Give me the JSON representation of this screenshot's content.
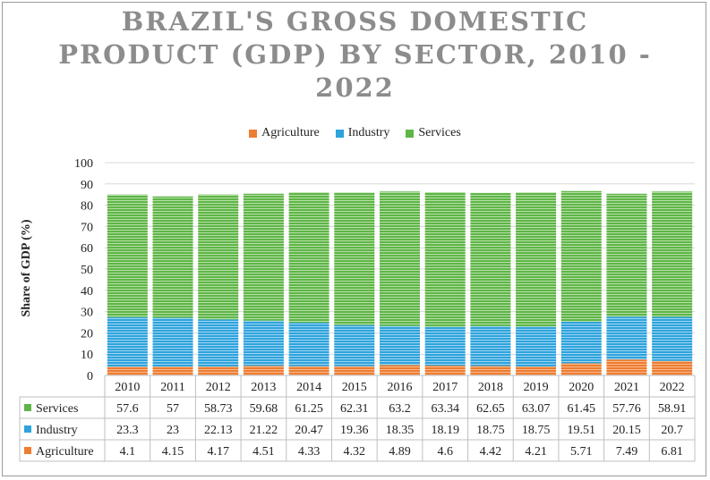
{
  "chart_data": {
    "type": "bar",
    "stacked": true,
    "title": "BRAZIL'S GROSS DOMESTIC PRODUCT (GDP) BY SECTOR, 2010 - 2022",
    "title_lines": [
      "BRAZIL'S GROSS DOMESTIC",
      "PRODUCT (GDP) BY SECTOR, 2010 -",
      "2022"
    ],
    "ylabel": "Share of GDP (%)",
    "xlabel": "",
    "ylim": [
      0,
      100
    ],
    "yticks": [
      "0",
      "10",
      "20",
      "30",
      "40",
      "50",
      "60",
      "70",
      "80",
      "90",
      "100"
    ],
    "grid": true,
    "legend_position": "top",
    "categories": [
      "2010",
      "2011",
      "2012",
      "2013",
      "2014",
      "2015",
      "2016",
      "2017",
      "2018",
      "2019",
      "2020",
      "2021",
      "2022"
    ],
    "series": [
      {
        "name": "Agriculture",
        "color": "#ed7d31",
        "values": [
          4.1,
          4.15,
          4.17,
          4.51,
          4.33,
          4.32,
          4.89,
          4.6,
          4.42,
          4.21,
          5.71,
          7.49,
          6.81
        ],
        "labels": [
          "4.1",
          "4.15",
          "4.17",
          "4.51",
          "4.33",
          "4.32",
          "4.89",
          "4.6",
          "4.42",
          "4.21",
          "5.71",
          "7.49",
          "6.81"
        ]
      },
      {
        "name": "Industry",
        "color": "#2ea3dc",
        "values": [
          23.3,
          23,
          22.13,
          21.22,
          20.47,
          19.36,
          18.35,
          18.19,
          18.75,
          18.75,
          19.51,
          20.15,
          20.7
        ],
        "labels": [
          "23.3",
          "23",
          "22.13",
          "21.22",
          "20.47",
          "19.36",
          "18.35",
          "18.19",
          "18.75",
          "18.75",
          "19.51",
          "20.15",
          "20.7"
        ]
      },
      {
        "name": "Services",
        "color": "#5fb548",
        "values": [
          57.6,
          57,
          58.73,
          59.68,
          61.25,
          62.31,
          63.2,
          63.34,
          62.65,
          63.07,
          61.45,
          57.76,
          58.91
        ],
        "labels": [
          "57.6",
          "57",
          "58.73",
          "59.68",
          "61.25",
          "62.31",
          "63.2",
          "63.34",
          "62.65",
          "63.07",
          "61.45",
          "57.76",
          "58.91"
        ]
      }
    ],
    "table_row_order": [
      "Services",
      "Industry",
      "Agriculture"
    ]
  }
}
